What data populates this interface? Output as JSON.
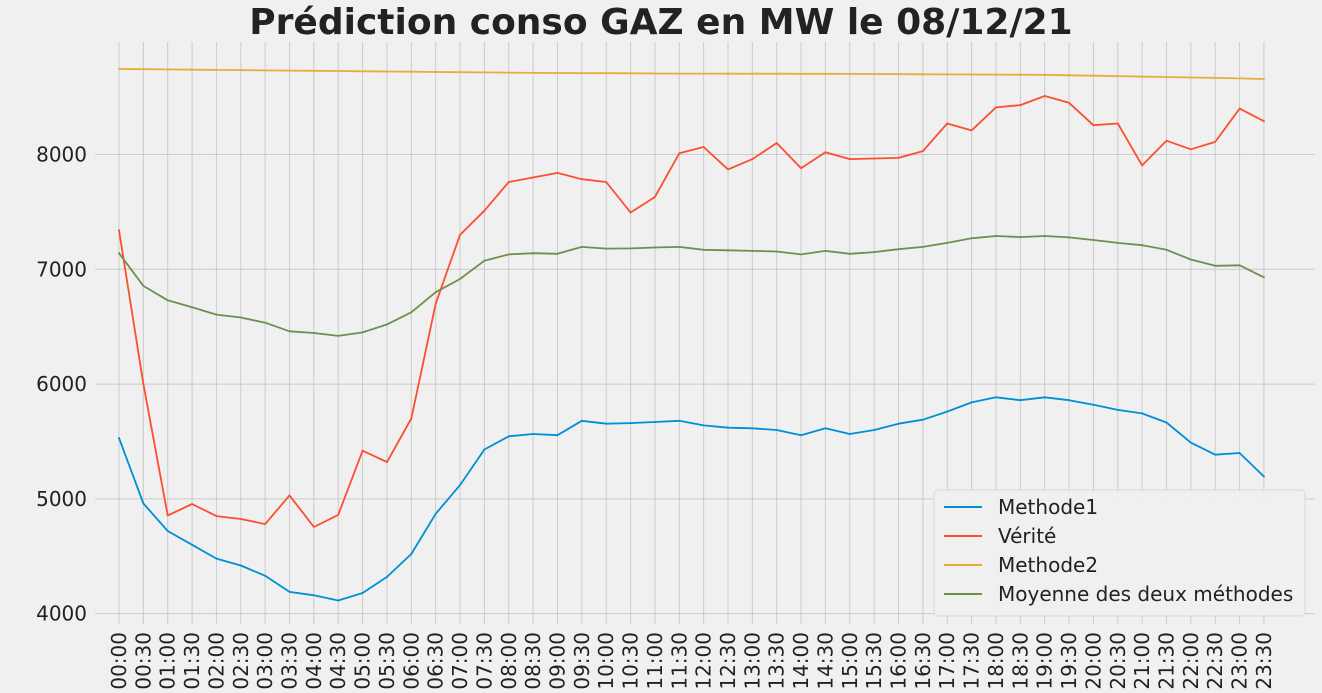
{
  "chart_data": {
    "type": "line",
    "title": "Prédiction conso GAZ en MW le 08/12/21",
    "xlabel": "",
    "ylabel": "",
    "ylim": [
      3910,
      8980
    ],
    "yticks": [
      4000,
      5000,
      6000,
      7000,
      8000
    ],
    "grid": true,
    "legend_position": "lower-right",
    "x": [
      "00:00",
      "00:30",
      "01:00",
      "01:30",
      "02:00",
      "02:30",
      "03:00",
      "03:30",
      "04:00",
      "04:30",
      "05:00",
      "05:30",
      "06:00",
      "06:30",
      "07:00",
      "07:30",
      "08:00",
      "08:30",
      "09:00",
      "09:30",
      "10:00",
      "10:30",
      "11:00",
      "11:30",
      "12:00",
      "12:30",
      "13:00",
      "13:30",
      "14:00",
      "14:30",
      "15:00",
      "15:30",
      "16:00",
      "16:30",
      "17:00",
      "17:30",
      "18:00",
      "18:30",
      "19:00",
      "19:30",
      "20:00",
      "20:30",
      "21:00",
      "21:30",
      "22:00",
      "22:30",
      "23:00",
      "23:30"
    ],
    "series": [
      {
        "name": "Methode1",
        "color": "#008fd5",
        "values": [
          5530,
          4960,
          4720,
          4600,
          4480,
          4420,
          4330,
          4190,
          4160,
          4115,
          4180,
          4320,
          4520,
          4870,
          5120,
          5430,
          5545,
          5565,
          5555,
          5680,
          5655,
          5660,
          5670,
          5680,
          5640,
          5620,
          5615,
          5600,
          5555,
          5615,
          5565,
          5600,
          5655,
          5690,
          5760,
          5840,
          5885,
          5860,
          5885,
          5860,
          5820,
          5775,
          5745,
          5665,
          5490,
          5385,
          5400,
          5195
        ]
      },
      {
        "name": "Vérité",
        "color": "#fc4f30",
        "values": [
          7340,
          6000,
          4855,
          4955,
          4850,
          4825,
          4780,
          5030,
          4755,
          4860,
          5420,
          5320,
          5700,
          6700,
          7300,
          7510,
          7760,
          7800,
          7840,
          7785,
          7760,
          7495,
          7630,
          8010,
          8065,
          7870,
          7960,
          8100,
          7880,
          8020,
          7960,
          7965,
          7970,
          8030,
          8270,
          8210,
          8410,
          8430,
          8510,
          8450,
          8255,
          8270,
          7905,
          8120,
          8045,
          8110,
          8400,
          8290
        ]
      },
      {
        "name": "Methode2",
        "color": "#e5ae38",
        "values": [
          8745,
          8743,
          8741,
          8739,
          8737,
          8735,
          8733,
          8731,
          8729,
          8727,
          8725,
          8723,
          8721,
          8719,
          8717,
          8715,
          8713,
          8711,
          8710,
          8709,
          8708,
          8707,
          8706,
          8705,
          8705,
          8704,
          8704,
          8704,
          8703,
          8703,
          8702,
          8701,
          8700,
          8699,
          8698,
          8697,
          8696,
          8695,
          8693,
          8690,
          8686,
          8683,
          8679,
          8675,
          8671,
          8667,
          8663,
          8658
        ]
      },
      {
        "name": "Moyenne des deux méthodes",
        "color": "#6d904f",
        "values": [
          7140,
          6855,
          6730,
          6670,
          6605,
          6580,
          6535,
          6460,
          6445,
          6420,
          6450,
          6520,
          6625,
          6800,
          6915,
          7075,
          7130,
          7140,
          7135,
          7195,
          7180,
          7182,
          7190,
          7195,
          7170,
          7165,
          7160,
          7155,
          7130,
          7160,
          7135,
          7150,
          7175,
          7195,
          7230,
          7270,
          7290,
          7280,
          7290,
          7278,
          7255,
          7230,
          7210,
          7170,
          7085,
          7030,
          7035,
          6930
        ]
      }
    ]
  }
}
